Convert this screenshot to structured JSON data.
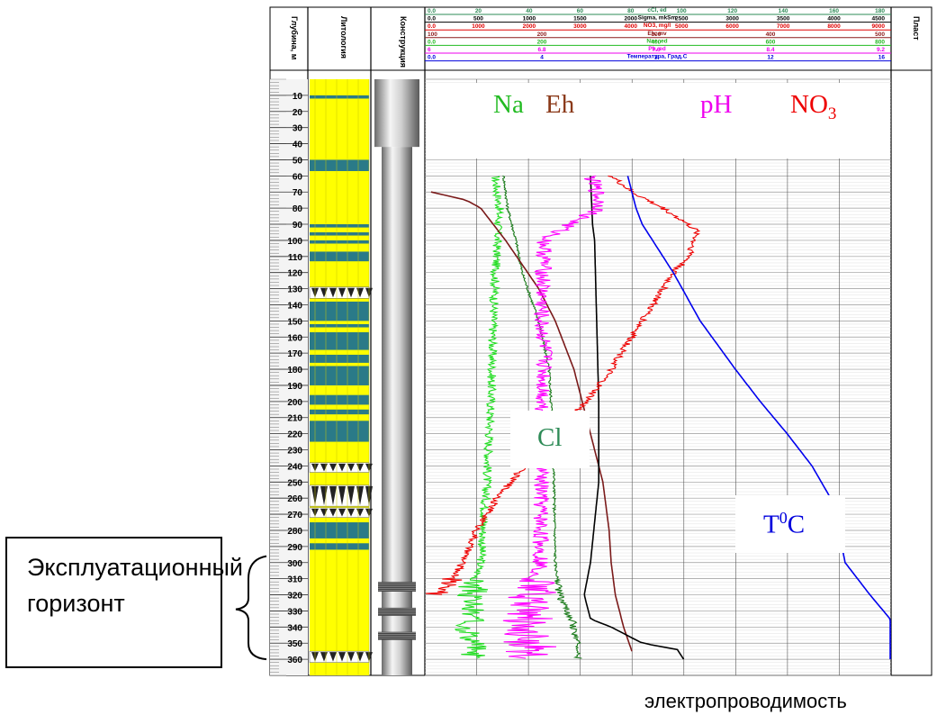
{
  "chart_data": {
    "type": "line",
    "title": "",
    "column_headers": {
      "depth": "Глубина, м",
      "lithology": "Литология",
      "construction": "Конструкция",
      "layer": "Пласт"
    },
    "depth_ticks": [
      10,
      20,
      30,
      40,
      50,
      60,
      70,
      80,
      90,
      100,
      110,
      120,
      130,
      140,
      150,
      160,
      170,
      180,
      190,
      200,
      210,
      220,
      230,
      240,
      250,
      260,
      270,
      280,
      290,
      300,
      310,
      320,
      330,
      340,
      350,
      360
    ],
    "ylim": [
      0,
      370
    ],
    "header_scales": [
      {
        "name": "cCl, ed",
        "color": "#2e8b57",
        "ticks": [
          "0.0",
          "20",
          "40",
          "60",
          "80",
          "100",
          "120",
          "140",
          "160",
          "180"
        ]
      },
      {
        "name": "Sigma, mkSm",
        "color": "#000000",
        "ticks": [
          "0.0",
          "500",
          "1000",
          "1500",
          "2000",
          "2500",
          "3000",
          "3500",
          "4000",
          "4500"
        ]
      },
      {
        "name": "NO3, mg/l",
        "color": "#e00000",
        "ticks": [
          "0.0",
          "1000",
          "2000",
          "3000",
          "4000",
          "5000",
          "6000",
          "7000",
          "8000",
          "9000"
        ]
      },
      {
        "name": "Eh, mv",
        "color": "#8b1a1a",
        "ticks": [
          "100",
          "200",
          "300",
          "400",
          "500"
        ]
      },
      {
        "name": "Na+, ed",
        "color": "#22bb22",
        "ticks": [
          "0.0",
          "200",
          "400",
          "600",
          "800"
        ]
      },
      {
        "name": "Ph, ed",
        "color": "#ee00ee",
        "ticks": [
          "6",
          "6.8",
          "7.6",
          "8.4",
          "9.2"
        ]
      },
      {
        "name": "Температура, Град.С",
        "color": "#0000dd",
        "ticks": [
          "0.0",
          "4",
          "8",
          "12",
          "16"
        ]
      }
    ],
    "series_labels": {
      "na": "Na",
      "eh": "Eh",
      "ph": "pH",
      "no3_base": "NO",
      "no3_sub": "3",
      "cl": "Cl",
      "temp_base": "T",
      "temp_sup": "0",
      "temp_tail": "C"
    },
    "series": [
      {
        "key": "na",
        "color": "#22dd22",
        "noise": 0.7,
        "points": [
          [
            60,
            0.34
          ],
          [
            80,
            0.36
          ],
          [
            100,
            0.35
          ],
          [
            150,
            0.33
          ],
          [
            200,
            0.32
          ],
          [
            250,
            0.3
          ],
          [
            300,
            0.27
          ],
          [
            320,
            0.22
          ],
          [
            340,
            0.22
          ],
          [
            360,
            0.25
          ]
        ]
      },
      {
        "key": "cl",
        "color": "#1a7a1a",
        "noise": 0.2,
        "points": [
          [
            60,
            0.38
          ],
          [
            80,
            0.4
          ],
          [
            100,
            0.44
          ],
          [
            120,
            0.47
          ],
          [
            150,
            0.55
          ],
          [
            180,
            0.6
          ],
          [
            200,
            0.61
          ],
          [
            220,
            0.62
          ],
          [
            300,
            0.63
          ],
          [
            320,
            0.65
          ],
          [
            340,
            0.72
          ],
          [
            360,
            0.75
          ]
        ]
      },
      {
        "key": "eh",
        "color": "#7a1a1a",
        "noise": 0,
        "points": [
          [
            70,
            0.03
          ],
          [
            75,
            0.2
          ],
          [
            80,
            0.27
          ],
          [
            90,
            0.33
          ],
          [
            100,
            0.39
          ],
          [
            115,
            0.47
          ],
          [
            130,
            0.55
          ],
          [
            150,
            0.63
          ],
          [
            180,
            0.72
          ],
          [
            210,
            0.78
          ],
          [
            230,
            0.82
          ],
          [
            250,
            0.86
          ],
          [
            280,
            0.89
          ],
          [
            300,
            0.9
          ],
          [
            320,
            0.92
          ],
          [
            340,
            0.96
          ],
          [
            355,
            1.0
          ]
        ]
      },
      {
        "key": "sigma",
        "color": "#000000",
        "noise": 0,
        "points": [
          [
            60,
            0.8
          ],
          [
            90,
            0.81
          ],
          [
            100,
            0.82
          ],
          [
            200,
            0.84
          ],
          [
            250,
            0.84
          ],
          [
            300,
            0.8
          ],
          [
            320,
            0.77
          ],
          [
            335,
            0.8
          ],
          [
            340,
            0.9
          ],
          [
            350,
            1.05
          ],
          [
            354,
            1.22
          ],
          [
            360,
            1.25
          ]
        ]
      },
      {
        "key": "ph",
        "color": "#ff00ff",
        "noise": 1.3,
        "points": [
          [
            60,
            0.8
          ],
          [
            70,
            0.83
          ],
          [
            80,
            0.85
          ],
          [
            90,
            0.7
          ],
          [
            100,
            0.58
          ],
          [
            150,
            0.56
          ],
          [
            170,
            0.58
          ],
          [
            200,
            0.57
          ],
          [
            250,
            0.56
          ],
          [
            300,
            0.56
          ],
          [
            320,
            0.52
          ],
          [
            340,
            0.48
          ],
          [
            360,
            0.5
          ]
        ]
      },
      {
        "key": "no3",
        "color": "#ee0000",
        "noise": 0.6,
        "points": [
          [
            60,
            0.9
          ],
          [
            70,
            1.0
          ],
          [
            80,
            1.15
          ],
          [
            90,
            1.27
          ],
          [
            95,
            1.32
          ],
          [
            100,
            1.3
          ],
          [
            110,
            1.28
          ],
          [
            120,
            1.2
          ],
          [
            150,
            1.05
          ],
          [
            180,
            0.9
          ],
          [
            200,
            0.78
          ],
          [
            220,
            0.63
          ],
          [
            240,
            0.48
          ],
          [
            260,
            0.35
          ],
          [
            280,
            0.25
          ],
          [
            300,
            0.18
          ],
          [
            315,
            0.12
          ],
          [
            320,
            0.05
          ]
        ]
      },
      {
        "key": "temp",
        "color": "#0000ee",
        "noise": 0,
        "points": [
          [
            60,
            0.98
          ],
          [
            70,
            1.0
          ],
          [
            80,
            1.02
          ],
          [
            90,
            1.05
          ],
          [
            100,
            1.1
          ],
          [
            120,
            1.2
          ],
          [
            150,
            1.33
          ],
          [
            180,
            1.5
          ],
          [
            200,
            1.62
          ],
          [
            220,
            1.75
          ],
          [
            240,
            1.87
          ],
          [
            260,
            1.96
          ],
          [
            280,
            2.0
          ],
          [
            300,
            2.03
          ],
          [
            320,
            2.15
          ],
          [
            340,
            2.28
          ],
          [
            360,
            2.33
          ]
        ]
      }
    ]
  },
  "callout": {
    "text": "Эксплуатационный горизонт"
  },
  "caption": "электропроводимость"
}
